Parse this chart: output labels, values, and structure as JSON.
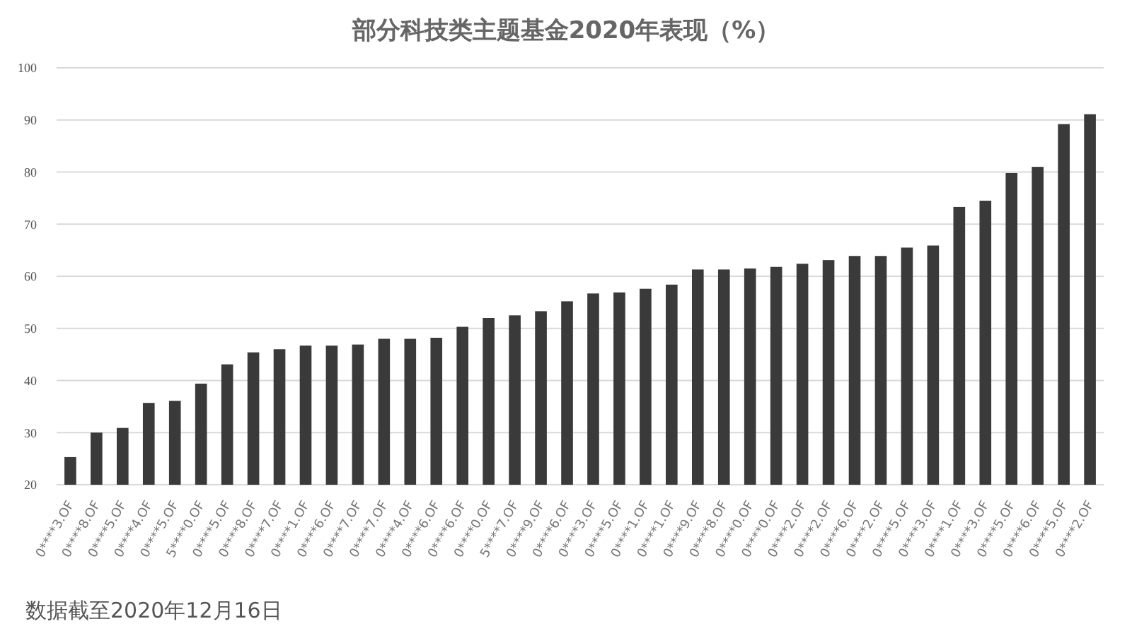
{
  "chart_data": {
    "type": "bar",
    "title": "部分科技类主题基金2020年表现（%）",
    "categories": [
      "0****3.OF",
      "0****8.OF",
      "0****5.OF",
      "0****4.OF",
      "0****5.OF",
      "5****0.OF",
      "0****5.OF",
      "0****8.OF",
      "0****7.OF",
      "0****1.OF",
      "0****6.OF",
      "0****7.OF",
      "0****7.OF",
      "0****4.OF",
      "0****6.OF",
      "0****6.OF",
      "0****0.OF",
      "5****7.OF",
      "0****9.OF",
      "0****6.OF",
      "0****3.OF",
      "0****5.OF",
      "0****1.OF",
      "0****1.OF",
      "0****9.OF",
      "0****8.OF",
      "0****0.OF",
      "0****0.OF",
      "0****2.OF",
      "0****2.OF",
      "0****6.OF",
      "0****2.OF",
      "0****5.OF",
      "0****3.OF",
      "0****1.OF",
      "0****3.OF",
      "0****5.OF",
      "0****6.OF",
      "0****5.OF",
      "0****2.OF"
    ],
    "values": [
      25.3,
      30,
      30.9,
      35.7,
      36.1,
      39.4,
      43.1,
      45.4,
      46,
      46.7,
      46.7,
      46.9,
      48,
      48,
      48.2,
      50.3,
      52,
      52.5,
      53.3,
      55.2,
      56.7,
      56.9,
      57.6,
      58.4,
      61.3,
      61.3,
      61.5,
      61.8,
      62.4,
      63.1,
      63.9,
      63.9,
      65.5,
      65.9,
      73.3,
      74.5,
      79.8,
      81,
      89.2,
      91.1
    ],
    "color": "#3a3a3a",
    "ylim": [
      20,
      100
    ],
    "yticks": [
      20,
      30,
      40,
      50,
      60,
      70,
      80,
      90,
      100
    ],
    "grid": "y",
    "annotations": [
      "数据截至2020年12月16日"
    ]
  }
}
